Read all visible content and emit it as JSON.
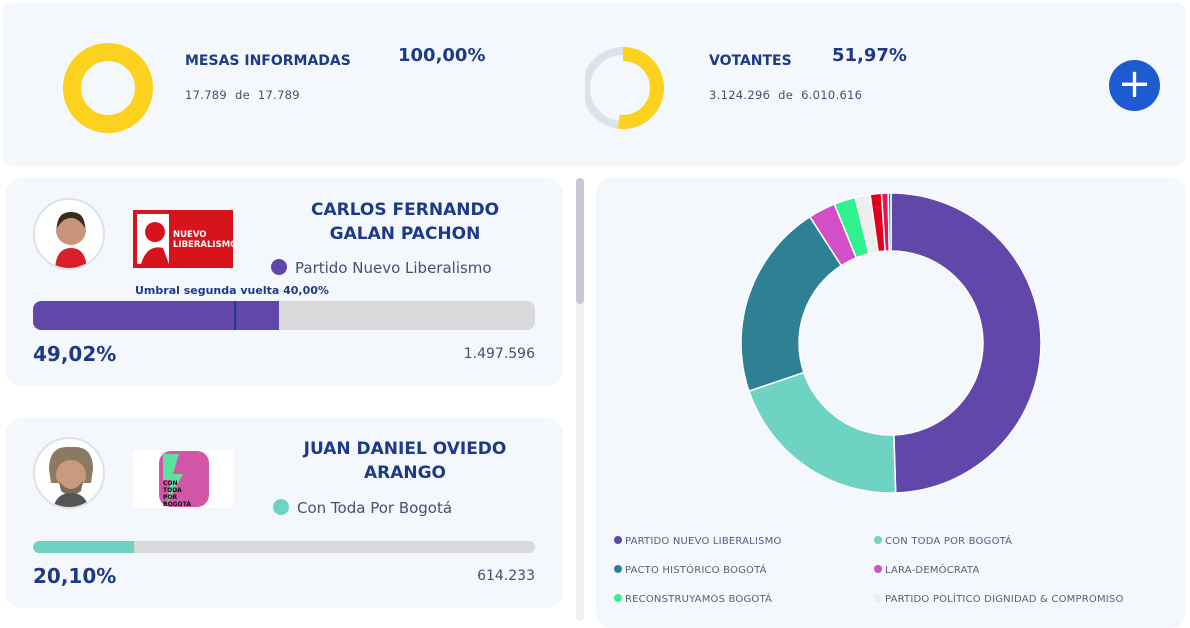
{
  "summary": {
    "mesas": {
      "label": "MESAS INFORMADAS",
      "percent": "100,00%",
      "count": "17.789",
      "de": "de",
      "total": "17.789",
      "fraction": 1.0
    },
    "votantes": {
      "label": "VOTANTES",
      "percent": "51,97%",
      "count": "3.124.296",
      "de": "de",
      "total": "6.010.616",
      "fraction": 0.5197
    },
    "expand_label": "+",
    "colors": {
      "fill": "#fcd21f",
      "track": "#dde2ea"
    }
  },
  "candidates": [
    {
      "name_line1": "CARLOS FERNANDO",
      "name_line2": "GALAN PACHON",
      "party": "Partido Nuevo Liberalismo",
      "logo_text": "NUEVO LIBERALISMO",
      "color": "#6247aa",
      "percent": "49,02%",
      "share": 0.4902,
      "votes": "1.497.596",
      "threshold_label": "Umbral segunda vuelta 40,00%",
      "threshold": 0.4
    },
    {
      "name_line1": "JUAN DANIEL OVIEDO",
      "name_line2": "ARANGO",
      "party": "Con Toda Por Bogotá",
      "logo_text": "CON TODA POR BOGOTÁ",
      "color": "#6fd3c3",
      "percent": "20,10%",
      "share": 0.201,
      "votes": "614.233"
    }
  ],
  "chart_data": {
    "type": "pie",
    "donut": true,
    "legend_position": "bottom",
    "series": [
      {
        "name": "PARTIDO NUEVO LIBERALISMO",
        "value": 49.02,
        "color": "#6247aa"
      },
      {
        "name": "CON TODA POR BOGOTÁ",
        "value": 20.1,
        "color": "#6fd3c3"
      },
      {
        "name": "PACTO HISTÓRICO BOGOTÁ",
        "value": 20.9,
        "color": "#2e8094"
      },
      {
        "name": "LARA-DEMÓCRATA",
        "value": 2.9,
        "color": "#d150c8"
      },
      {
        "name": "RECONSTRUYAMOS BOGOTÁ",
        "value": 2.3,
        "color": "#2ff28f"
      },
      {
        "name": "PARTIDO POLÍTICO DIGNIDAD & COMPROMISO",
        "value": 1.6,
        "color": "#eeeeee"
      },
      {
        "value": 1.2,
        "color": "#e0001b"
      },
      {
        "value": 0.7,
        "color": "#e6145a"
      },
      {
        "value": 0.3,
        "color": "#2e8094"
      }
    ]
  }
}
